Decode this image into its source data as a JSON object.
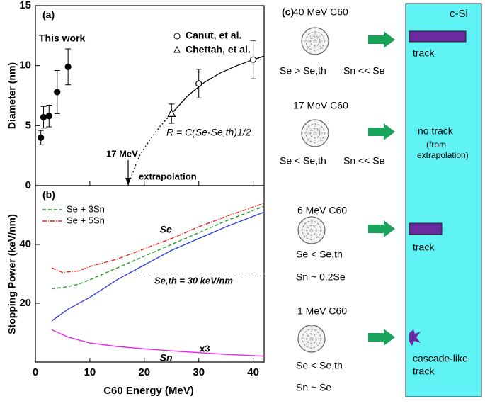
{
  "chart_data": [
    {
      "type": "scatter",
      "title": "(a)",
      "ylabel": "Diameter (nm)",
      "xlim": [
        0,
        42
      ],
      "xticks": [
        0,
        10,
        20,
        30,
        40
      ],
      "ylim": [
        0,
        15
      ],
      "yticks": [
        0,
        5,
        10,
        15
      ],
      "series": [
        {
          "name": "This work",
          "marker": "filled-circle",
          "color": "#000000",
          "x": [
            1,
            1.5,
            2.5,
            4,
            6
          ],
          "values": [
            4.0,
            5.7,
            5.8,
            7.8,
            9.9
          ],
          "errors": [
            0.6,
            0.9,
            0.9,
            1.8,
            1.5
          ]
        },
        {
          "name": "Canut, et al.",
          "marker": "open-circle",
          "color": "#000000",
          "x": [
            30,
            40
          ],
          "values": [
            8.5,
            10.5
          ],
          "errors": [
            1.2,
            1.6
          ]
        },
        {
          "name": "Chettah, et al.",
          "marker": "open-triangle",
          "color": "#000000",
          "x": [
            25
          ],
          "values": [
            6.0
          ],
          "errors": [
            0.8
          ]
        }
      ],
      "fit_curve": {
        "x": [
          25,
          28,
          31,
          34,
          37,
          40,
          42
        ],
        "values": [
          6.0,
          7.5,
          8.6,
          9.4,
          10.0,
          10.5,
          10.8
        ]
      },
      "extrapolation_curve": {
        "x": [
          17,
          19,
          21,
          23,
          25
        ],
        "values": [
          0,
          2.4,
          3.8,
          5.0,
          6.0
        ]
      },
      "annotations": {
        "energy": "17 MeV",
        "extrapolation": "extrapolation",
        "formula": "R = C(Se-Se,th)1/2"
      }
    },
    {
      "type": "line",
      "title": "(b)",
      "xlabel": "C60 Energy (MeV)",
      "ylabel": "Stopping Power (keV/nm)",
      "xlim": [
        0,
        42
      ],
      "xticks": [
        0,
        10,
        20,
        30,
        40
      ],
      "ylim": [
        0,
        60
      ],
      "yticks": [
        20,
        40
      ],
      "series": [
        {
          "name": "Se",
          "color": "#3344dd",
          "dash": "",
          "x": [
            3,
            6,
            10,
            15,
            20,
            25,
            30,
            35,
            42
          ],
          "values": [
            14,
            18,
            22,
            28,
            33,
            38,
            42,
            46,
            51
          ]
        },
        {
          "name": "Se + 3Sn",
          "color": "#229922",
          "dash": "5,3",
          "x": [
            3,
            5,
            8,
            10,
            15,
            20,
            25,
            30,
            35,
            42
          ],
          "values": [
            25,
            25.3,
            26.5,
            28,
            32,
            36,
            40,
            44,
            48,
            53
          ]
        },
        {
          "name": "Se + 5Sn",
          "color": "#ee2222",
          "dash": "6,2,1,2",
          "x": [
            3,
            5,
            8,
            10,
            15,
            20,
            25,
            30,
            35,
            42
          ],
          "values": [
            32,
            30.5,
            31,
            32.5,
            35,
            38.5,
            42,
            46,
            49.5,
            54
          ]
        },
        {
          "name": "Sn",
          "color": "#ee22ee",
          "dash": "",
          "x": [
            3,
            6,
            10,
            15,
            20,
            25,
            30,
            35,
            42
          ],
          "values": [
            11,
            8.5,
            6.5,
            5.3,
            4.5,
            3.8,
            3.2,
            2.6,
            2.0
          ]
        }
      ],
      "threshold": {
        "value": 30,
        "x": [
          15,
          42
        ],
        "label": "Se,th = 30 keV/nm"
      },
      "annotations": {
        "factor": "x3"
      }
    }
  ],
  "diagram": {
    "title": "(c)",
    "material": "c-Si",
    "rows": [
      {
        "energy": "40 MeV C60",
        "result": "track",
        "condition1": "Se > Se,th",
        "condition2": "Sn << Se"
      },
      {
        "energy": "17 MeV C60",
        "result": "no track",
        "note1": "(from",
        "note2": "extrapolation)",
        "condition1": "Se < Se,th",
        "condition2": "Sn << Se"
      },
      {
        "energy": "6 MeV C60",
        "result": "track",
        "condition1": "Se < Se,th",
        "condition2": "Sn ~ 0.2Se"
      },
      {
        "energy": "1 MeV C60",
        "result": "cascade-like",
        "result2": "track",
        "condition1": "Se < Se,th",
        "condition2": "Sn ~ Se"
      }
    ]
  }
}
